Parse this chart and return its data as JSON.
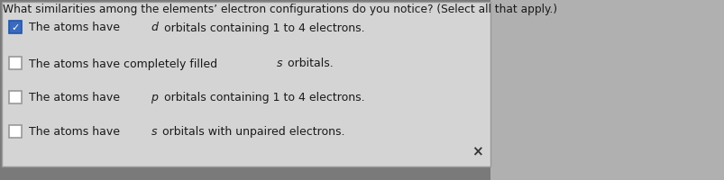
{
  "title": "What similarities among the elements’ electron configurations do you notice? (Select all that apply.)",
  "title_fontsize": 8.8,
  "title_color": "#1a1a1a",
  "bg_color": "#7a7a7a",
  "panel_bg": "#d4d4d4",
  "panel_border": "#999999",
  "options": [
    {
      "text_before": "The atoms have ",
      "italic_char": "d",
      "text_after": " orbitals containing 1 to 4 electrons.",
      "checked": true,
      "check_bg": "#3a6abf",
      "check_border": "#2255aa"
    },
    {
      "text_before": "The atoms have completely filled ",
      "italic_char": "s",
      "text_after": " orbitals.",
      "checked": false,
      "check_bg": "#ffffff",
      "check_border": "#999999"
    },
    {
      "text_before": "The atoms have ",
      "italic_char": "p",
      "text_after": " orbitals containing 1 to 4 electrons.",
      "checked": false,
      "check_bg": "#ffffff",
      "check_border": "#999999"
    },
    {
      "text_before": "The atoms have ",
      "italic_char": "s",
      "text_after": " orbitals with unpaired electrons.",
      "checked": false,
      "check_bg": "#ffffff",
      "check_border": "#999999"
    }
  ],
  "x_mark": "×",
  "x_mark_color": "#333333",
  "text_color": "#1a1a1a",
  "font_size": 9.0,
  "checkmark": "✓"
}
